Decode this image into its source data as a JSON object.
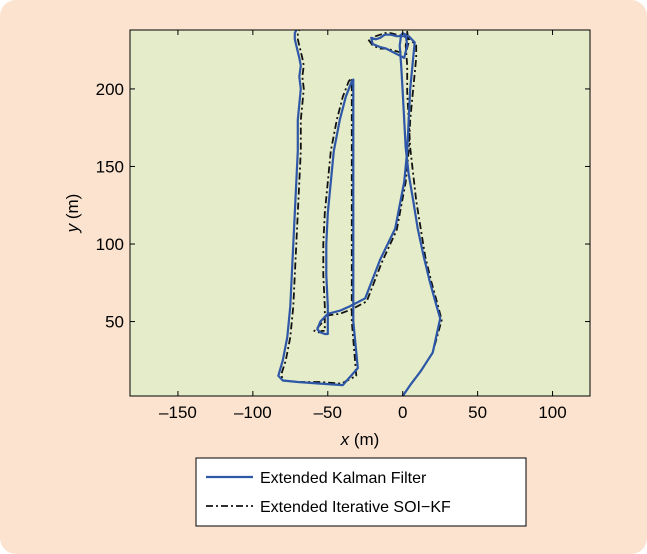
{
  "chart_data": {
    "type": "line",
    "title": "",
    "xlabel": {
      "var": "x",
      "unit": " (m)"
    },
    "ylabel": {
      "var": "y",
      "unit": " (m)"
    },
    "xlim": [
      -182,
      125
    ],
    "ylim": [
      2,
      238
    ],
    "xticks": [
      -150,
      -100,
      -50,
      0,
      50,
      100
    ],
    "yticks": [
      50,
      100,
      150,
      200
    ],
    "xtick_labels": [
      "–150",
      "–100",
      "–50",
      "0",
      "50",
      "100"
    ],
    "ytick_labels": [
      "50",
      "100",
      "150",
      "200"
    ],
    "grid": false,
    "legend_placement": "below plot",
    "series": [
      {
        "name": "Extended Kalman Filter",
        "color": "#2e57a8",
        "dash": "solid",
        "x": [
          0,
          5,
          12,
          20,
          25,
          22,
          18,
          14,
          10,
          7,
          4,
          2,
          1,
          0,
          -1,
          -2,
          -1,
          0,
          2,
          3,
          1,
          -3,
          -11,
          -15,
          -20,
          -21,
          -18,
          -15,
          -12,
          -8,
          -4,
          4,
          8,
          7,
          5,
          4,
          3,
          1,
          -5,
          -15,
          -25,
          -35,
          -42,
          -50,
          -55,
          -57,
          -55,
          -52,
          -50,
          -50,
          -51,
          -51,
          -50,
          -48,
          -46,
          -42,
          -38,
          -34,
          -33,
          -33,
          -33,
          -33,
          -33,
          -30,
          -40,
          -55,
          -70,
          -80,
          -83,
          -80,
          -77,
          -75,
          -74,
          -73,
          -72,
          -71,
          -70,
          -70,
          -70,
          -69,
          -68,
          -69,
          -68,
          -69,
          -70,
          -71,
          -72,
          -72,
          -71
        ],
        "y": [
          2,
          9,
          18,
          30,
          52,
          62,
          76,
          92,
          110,
          128,
          145,
          162,
          180,
          198,
          215,
          228,
          235,
          236,
          235,
          228,
          220,
          222,
          226,
          227,
          229,
          233,
          232,
          233,
          235,
          235,
          234,
          234,
          230,
          220,
          200,
          180,
          160,
          140,
          110,
          90,
          65,
          60,
          57,
          55,
          50,
          45,
          43,
          42,
          42,
          60,
          80,
          100,
          120,
          140,
          160,
          180,
          195,
          205,
          206,
          196,
          150,
          100,
          50,
          20,
          9,
          10,
          11,
          12,
          15,
          25,
          40,
          60,
          80,
          100,
          120,
          140,
          160,
          170,
          180,
          190,
          200,
          208,
          215,
          220,
          224,
          228,
          232,
          236,
          238
        ]
      },
      {
        "name": "Extended Iterative SOI−KF",
        "color": "#111111",
        "dash": "dashdot",
        "x": [
          0,
          5,
          12,
          20,
          26,
          23,
          19,
          15,
          12,
          9,
          7,
          5,
          4,
          3,
          3,
          2,
          3,
          3,
          3,
          4,
          2,
          -3,
          -11,
          -15,
          -20,
          -23,
          -18,
          -15,
          -12,
          -8,
          -4,
          4,
          9,
          9,
          7,
          5,
          4,
          2,
          -4,
          -14,
          -24,
          -34,
          -42,
          -50,
          -55,
          -59,
          -56,
          -54,
          -52,
          -52,
          -53,
          -53,
          -52,
          -50,
          -48,
          -44,
          -40,
          -36,
          -34,
          -34,
          -34,
          -34,
          -34,
          -31,
          -41,
          -56,
          -70,
          -80,
          -81,
          -78,
          -75,
          -73,
          -72,
          -71,
          -70,
          -69,
          -68,
          -68,
          -68,
          -67,
          -66,
          -67,
          -66,
          -67,
          -68,
          -69,
          -70,
          -70,
          -69
        ],
        "y": [
          2,
          9,
          18,
          30,
          51,
          62,
          76,
          92,
          110,
          128,
          145,
          162,
          180,
          198,
          215,
          228,
          235,
          237,
          237,
          230,
          223,
          224,
          226,
          226,
          228,
          232,
          234,
          235,
          236,
          236,
          235,
          233,
          228,
          220,
          200,
          180,
          160,
          140,
          109,
          88,
          63,
          58,
          55,
          54,
          48,
          44,
          43,
          44,
          44,
          60,
          80,
          100,
          120,
          140,
          160,
          180,
          195,
          205,
          207,
          196,
          150,
          100,
          50,
          15,
          10,
          11,
          11,
          12,
          16,
          25,
          40,
          60,
          80,
          100,
          120,
          140,
          160,
          170,
          180,
          190,
          200,
          208,
          215,
          220,
          224,
          228,
          232,
          236,
          238
        ]
      }
    ]
  },
  "colors": {
    "panel_bg": "#fbe3cf",
    "plot_bg": "#e4ecc9",
    "axis": "#000000"
  }
}
